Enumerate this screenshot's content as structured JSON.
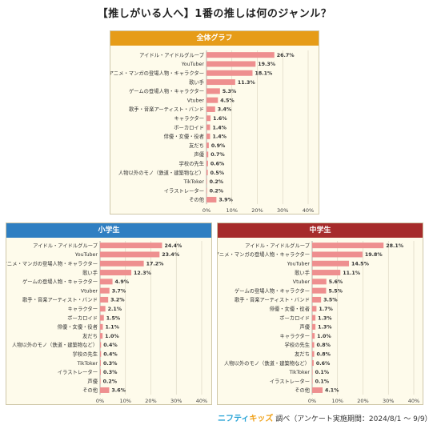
{
  "title": "【推しがいる人へ】1番の推しは何のジャンル？",
  "footer": {
    "brand_a": "ニフティ",
    "brand_b": "キッズ",
    "text": "調べ（アンケート実施期間：2024/8/1 ～ 9/9）"
  },
  "colors": {
    "bar": "#ee8f8f",
    "header_all": "#e69c18",
    "header_elem": "#2f7fc2",
    "header_mid": "#a62b2b",
    "panel_bg": "#fefbeb"
  },
  "chart_data": [
    {
      "type": "bar",
      "orientation": "horizontal",
      "title": "全体グラフ",
      "categories": [
        "アイドル・アイドルグループ",
        "YouTuber",
        "アニメ・マンガの登場人物・キャラクター",
        "歌い手",
        "ゲームの登場人物・キャラクター",
        "Vtuber",
        "歌手・音楽アーティスト・バンド",
        "キャラクター",
        "ボーカロイド",
        "俳優・女優・役者",
        "友だち",
        "声優",
        "学校の先生",
        "人物以外のモノ（鉄道・建築物など）",
        "TikToker",
        "イラストレーター",
        "その他"
      ],
      "values": [
        26.7,
        19.3,
        18.1,
        11.3,
        5.3,
        4.5,
        3.4,
        1.6,
        1.4,
        1.4,
        0.9,
        0.7,
        0.6,
        0.5,
        0.2,
        0.2,
        3.9
      ],
      "value_labels": [
        "26.7%",
        "19.3%",
        "18.1%",
        "11.3%",
        "5.3%",
        "4.5%",
        "3.4%",
        "1.6%",
        "1.4%",
        "1.4%",
        "0.9%",
        "0.7%",
        "0.6%",
        "0.5%",
        "0.2%",
        "0.2%",
        "3.9%"
      ],
      "xlim": [
        0,
        40
      ],
      "ticks": [
        "0%",
        "10%",
        "20%",
        "30%",
        "40%"
      ],
      "grid": true
    },
    {
      "type": "bar",
      "orientation": "horizontal",
      "title": "小学生",
      "categories": [
        "アイドル・アイドルグループ",
        "YouTuber",
        "アニメ・マンガの登場人物・キャラクター",
        "歌い手",
        "ゲームの登場人物・キャラクター",
        "Vtuber",
        "歌手・音楽アーティスト・バンド",
        "キャラクター",
        "ボーカロイド",
        "俳優・女優・役者",
        "友だち",
        "人物以外のモノ（鉄道・建築物など）",
        "学校の先生",
        "TikToker",
        "イラストレーター",
        "声優",
        "その他"
      ],
      "values": [
        24.4,
        23.4,
        17.2,
        12.3,
        4.9,
        3.7,
        3.2,
        2.1,
        1.5,
        1.1,
        1.0,
        0.4,
        0.4,
        0.3,
        0.3,
        0.2,
        3.6
      ],
      "value_labels": [
        "24.4%",
        "23.4%",
        "17.2%",
        "12.3%",
        "4.9%",
        "3.7%",
        "3.2%",
        "2.1%",
        "1.5%",
        "1.1%",
        "1.0%",
        "0.4%",
        "0.4%",
        "0.3%",
        "0.3%",
        "0.2%",
        "3.6%"
      ],
      "xlim": [
        0,
        40
      ],
      "ticks": [
        "0%",
        "10%",
        "20%",
        "30%",
        "40%"
      ],
      "grid": true
    },
    {
      "type": "bar",
      "orientation": "horizontal",
      "title": "中学生",
      "categories": [
        "アイドル・アイドルグループ",
        "アニメ・マンガの登場人物・キャラクター",
        "YouTuber",
        "歌い手",
        "Vtuber",
        "ゲームの登場人物・キャラクター",
        "歌手・音楽アーティスト・バンド",
        "俳優・女優・役者",
        "ボーカロイド",
        "声優",
        "キャラクター",
        "学校の先生",
        "友だち",
        "人物以外のモノ（鉄道・建築物など）",
        "TikToker",
        "イラストレーター",
        "その他"
      ],
      "values": [
        28.1,
        19.8,
        14.5,
        11.1,
        5.6,
        5.5,
        3.5,
        1.7,
        1.3,
        1.3,
        1.0,
        0.8,
        0.8,
        0.6,
        0.1,
        0.1,
        4.1
      ],
      "value_labels": [
        "28.1%",
        "19.8%",
        "14.5%",
        "11.1%",
        "5.6%",
        "5.5%",
        "3.5%",
        "1.7%",
        "1.3%",
        "1.3%",
        "1.0%",
        "0.8%",
        "0.8%",
        "0.6%",
        "0.1%",
        "0.1%",
        "4.1%"
      ],
      "xlim": [
        0,
        40
      ],
      "ticks": [
        "0%",
        "10%",
        "20%",
        "30%",
        "40%"
      ],
      "grid": true
    }
  ]
}
